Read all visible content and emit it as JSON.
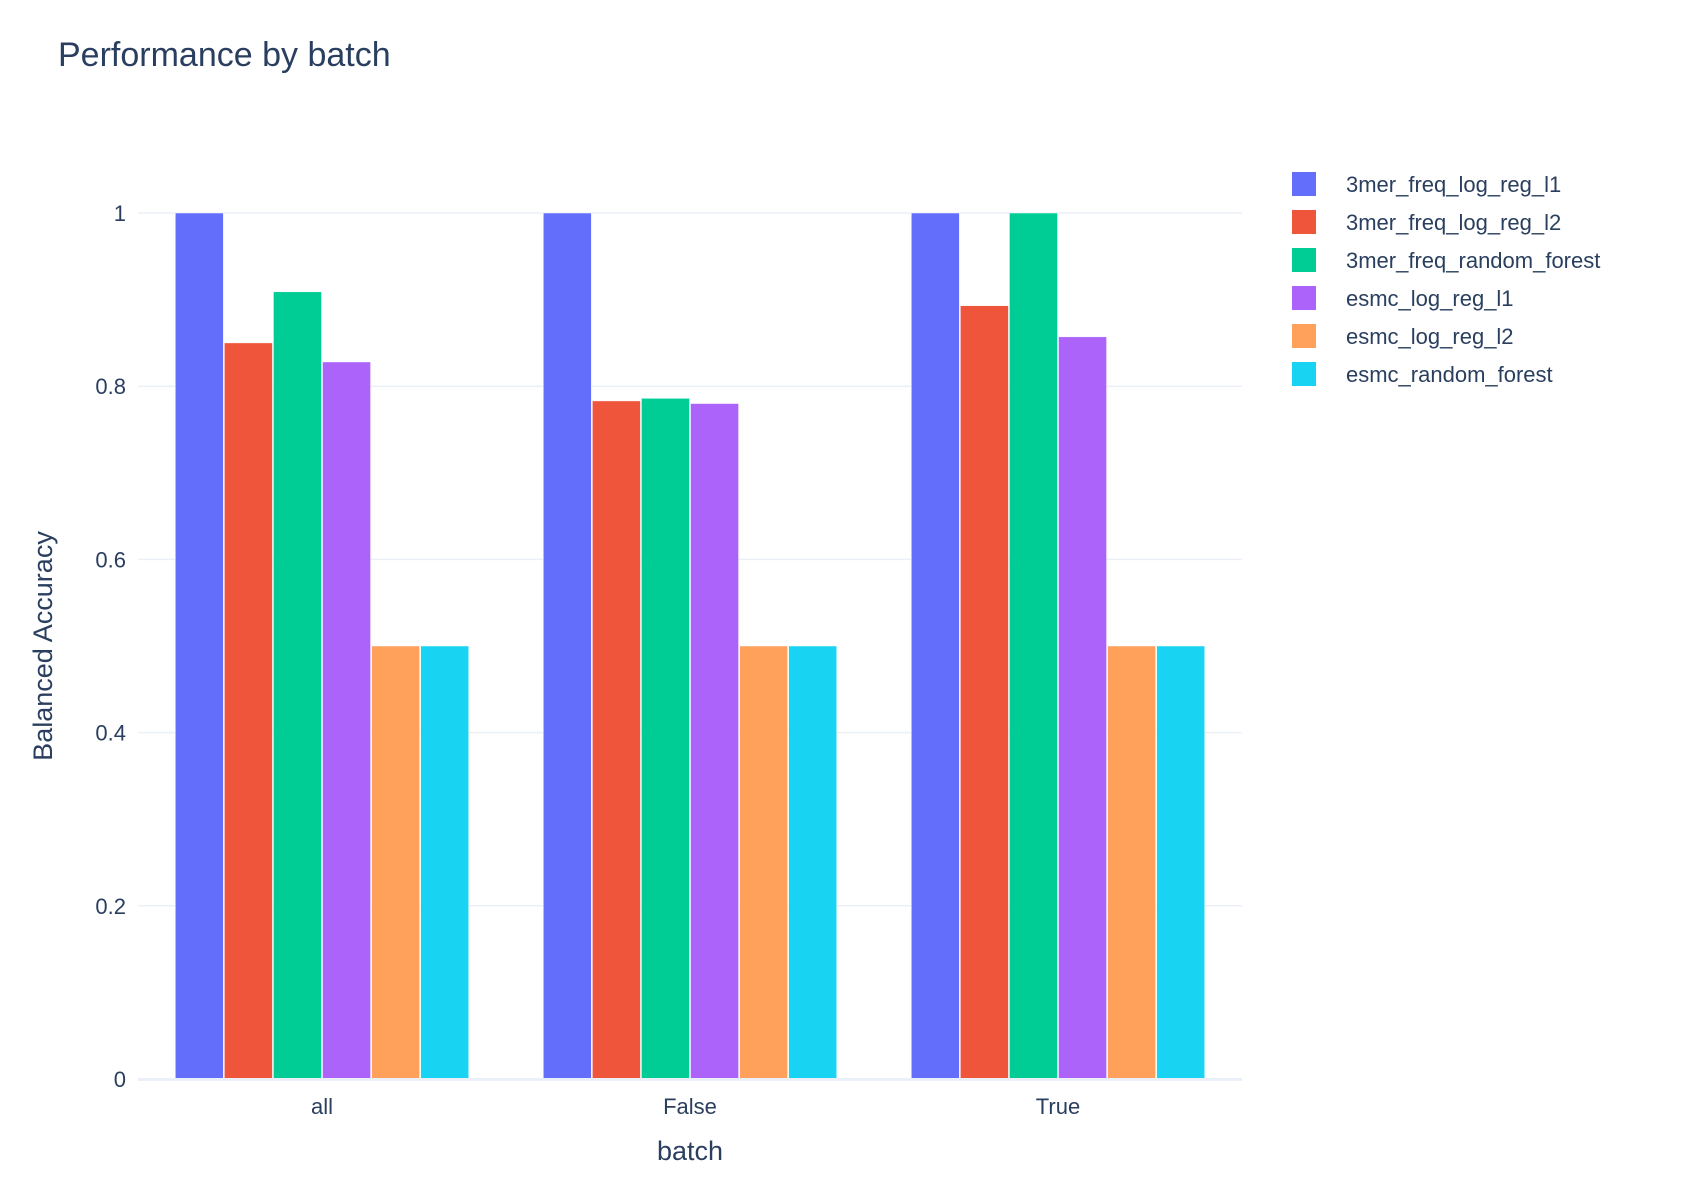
{
  "chart_data": {
    "type": "bar",
    "title": "Performance by batch",
    "xlabel": "batch",
    "ylabel": "Balanced Accuracy",
    "categories": [
      "all",
      "False",
      "True"
    ],
    "ylim": [
      0,
      1
    ],
    "yticks": [
      0,
      0.2,
      0.4,
      0.6,
      0.8,
      1
    ],
    "ytick_labels": [
      "0",
      "0.2",
      "0.4",
      "0.6",
      "0.8",
      "1"
    ],
    "grid": true,
    "legend_position": "top-right",
    "series": [
      {
        "name": "3mer_freq_log_reg_l1",
        "color": "#636efa",
        "values": [
          1.0,
          1.0,
          1.0
        ]
      },
      {
        "name": "3mer_freq_log_reg_l2",
        "color": "#ef553b",
        "values": [
          0.85,
          0.783,
          0.893
        ]
      },
      {
        "name": "3mer_freq_random_forest",
        "color": "#00cc96",
        "values": [
          0.909,
          0.786,
          1.0
        ]
      },
      {
        "name": "esmc_log_reg_l1",
        "color": "#ab63fa",
        "values": [
          0.828,
          0.78,
          0.857
        ]
      },
      {
        "name": "esmc_log_reg_l2",
        "color": "#ffa15a",
        "values": [
          0.5,
          0.5,
          0.5
        ]
      },
      {
        "name": "esmc_random_forest",
        "color": "#19d3f3",
        "values": [
          0.5,
          0.5,
          0.5
        ]
      }
    ]
  }
}
